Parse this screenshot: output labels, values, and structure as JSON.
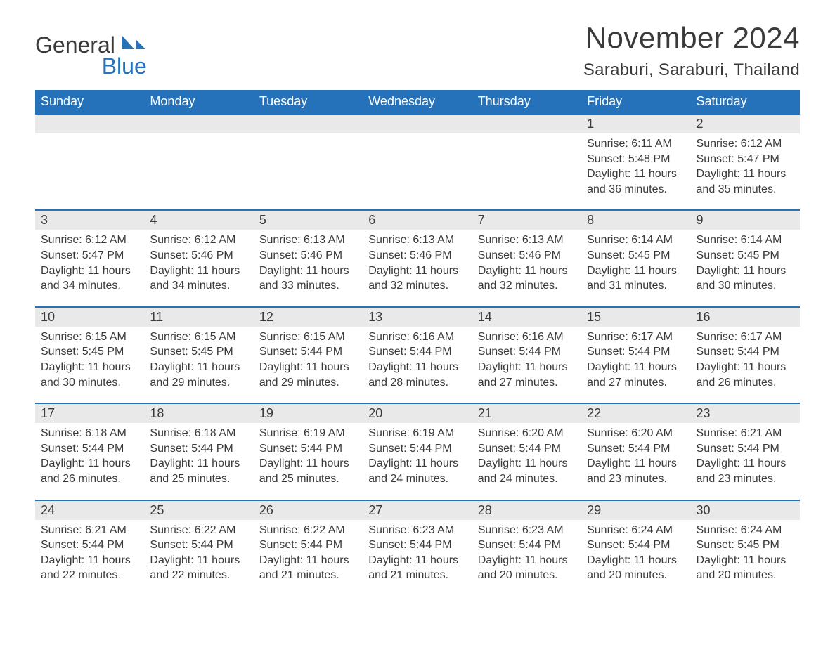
{
  "brand": {
    "word1": "General",
    "word2": "Blue",
    "logo_color": "#2572bb",
    "text_color": "#3a3a3a"
  },
  "title": {
    "month_year": "November 2024",
    "location": "Saraburi, Saraburi, Thailand"
  },
  "style": {
    "header_bg": "#2572bb",
    "header_text": "#ffffff",
    "daynum_bg": "#e9e9e9",
    "border_color": "#2572bb",
    "body_text": "#3a3a3a",
    "page_bg": "#ffffff",
    "dayheader_fontsize": 18,
    "title_fontsize": 42,
    "location_fontsize": 24,
    "cell_fontsize": 16
  },
  "day_headers": [
    "Sunday",
    "Monday",
    "Tuesday",
    "Wednesday",
    "Thursday",
    "Friday",
    "Saturday"
  ],
  "weeks": [
    [
      {
        "empty": true
      },
      {
        "empty": true
      },
      {
        "empty": true
      },
      {
        "empty": true
      },
      {
        "empty": true
      },
      {
        "day": "1",
        "sunrise": "Sunrise: 6:11 AM",
        "sunset": "Sunset: 5:48 PM",
        "daylight1": "Daylight: 11 hours",
        "daylight2": "and 36 minutes."
      },
      {
        "day": "2",
        "sunrise": "Sunrise: 6:12 AM",
        "sunset": "Sunset: 5:47 PM",
        "daylight1": "Daylight: 11 hours",
        "daylight2": "and 35 minutes."
      }
    ],
    [
      {
        "day": "3",
        "sunrise": "Sunrise: 6:12 AM",
        "sunset": "Sunset: 5:47 PM",
        "daylight1": "Daylight: 11 hours",
        "daylight2": "and 34 minutes."
      },
      {
        "day": "4",
        "sunrise": "Sunrise: 6:12 AM",
        "sunset": "Sunset: 5:46 PM",
        "daylight1": "Daylight: 11 hours",
        "daylight2": "and 34 minutes."
      },
      {
        "day": "5",
        "sunrise": "Sunrise: 6:13 AM",
        "sunset": "Sunset: 5:46 PM",
        "daylight1": "Daylight: 11 hours",
        "daylight2": "and 33 minutes."
      },
      {
        "day": "6",
        "sunrise": "Sunrise: 6:13 AM",
        "sunset": "Sunset: 5:46 PM",
        "daylight1": "Daylight: 11 hours",
        "daylight2": "and 32 minutes."
      },
      {
        "day": "7",
        "sunrise": "Sunrise: 6:13 AM",
        "sunset": "Sunset: 5:46 PM",
        "daylight1": "Daylight: 11 hours",
        "daylight2": "and 32 minutes."
      },
      {
        "day": "8",
        "sunrise": "Sunrise: 6:14 AM",
        "sunset": "Sunset: 5:45 PM",
        "daylight1": "Daylight: 11 hours",
        "daylight2": "and 31 minutes."
      },
      {
        "day": "9",
        "sunrise": "Sunrise: 6:14 AM",
        "sunset": "Sunset: 5:45 PM",
        "daylight1": "Daylight: 11 hours",
        "daylight2": "and 30 minutes."
      }
    ],
    [
      {
        "day": "10",
        "sunrise": "Sunrise: 6:15 AM",
        "sunset": "Sunset: 5:45 PM",
        "daylight1": "Daylight: 11 hours",
        "daylight2": "and 30 minutes."
      },
      {
        "day": "11",
        "sunrise": "Sunrise: 6:15 AM",
        "sunset": "Sunset: 5:45 PM",
        "daylight1": "Daylight: 11 hours",
        "daylight2": "and 29 minutes."
      },
      {
        "day": "12",
        "sunrise": "Sunrise: 6:15 AM",
        "sunset": "Sunset: 5:44 PM",
        "daylight1": "Daylight: 11 hours",
        "daylight2": "and 29 minutes."
      },
      {
        "day": "13",
        "sunrise": "Sunrise: 6:16 AM",
        "sunset": "Sunset: 5:44 PM",
        "daylight1": "Daylight: 11 hours",
        "daylight2": "and 28 minutes."
      },
      {
        "day": "14",
        "sunrise": "Sunrise: 6:16 AM",
        "sunset": "Sunset: 5:44 PM",
        "daylight1": "Daylight: 11 hours",
        "daylight2": "and 27 minutes."
      },
      {
        "day": "15",
        "sunrise": "Sunrise: 6:17 AM",
        "sunset": "Sunset: 5:44 PM",
        "daylight1": "Daylight: 11 hours",
        "daylight2": "and 27 minutes."
      },
      {
        "day": "16",
        "sunrise": "Sunrise: 6:17 AM",
        "sunset": "Sunset: 5:44 PM",
        "daylight1": "Daylight: 11 hours",
        "daylight2": "and 26 minutes."
      }
    ],
    [
      {
        "day": "17",
        "sunrise": "Sunrise: 6:18 AM",
        "sunset": "Sunset: 5:44 PM",
        "daylight1": "Daylight: 11 hours",
        "daylight2": "and 26 minutes."
      },
      {
        "day": "18",
        "sunrise": "Sunrise: 6:18 AM",
        "sunset": "Sunset: 5:44 PM",
        "daylight1": "Daylight: 11 hours",
        "daylight2": "and 25 minutes."
      },
      {
        "day": "19",
        "sunrise": "Sunrise: 6:19 AM",
        "sunset": "Sunset: 5:44 PM",
        "daylight1": "Daylight: 11 hours",
        "daylight2": "and 25 minutes."
      },
      {
        "day": "20",
        "sunrise": "Sunrise: 6:19 AM",
        "sunset": "Sunset: 5:44 PM",
        "daylight1": "Daylight: 11 hours",
        "daylight2": "and 24 minutes."
      },
      {
        "day": "21",
        "sunrise": "Sunrise: 6:20 AM",
        "sunset": "Sunset: 5:44 PM",
        "daylight1": "Daylight: 11 hours",
        "daylight2": "and 24 minutes."
      },
      {
        "day": "22",
        "sunrise": "Sunrise: 6:20 AM",
        "sunset": "Sunset: 5:44 PM",
        "daylight1": "Daylight: 11 hours",
        "daylight2": "and 23 minutes."
      },
      {
        "day": "23",
        "sunrise": "Sunrise: 6:21 AM",
        "sunset": "Sunset: 5:44 PM",
        "daylight1": "Daylight: 11 hours",
        "daylight2": "and 23 minutes."
      }
    ],
    [
      {
        "day": "24",
        "sunrise": "Sunrise: 6:21 AM",
        "sunset": "Sunset: 5:44 PM",
        "daylight1": "Daylight: 11 hours",
        "daylight2": "and 22 minutes."
      },
      {
        "day": "25",
        "sunrise": "Sunrise: 6:22 AM",
        "sunset": "Sunset: 5:44 PM",
        "daylight1": "Daylight: 11 hours",
        "daylight2": "and 22 minutes."
      },
      {
        "day": "26",
        "sunrise": "Sunrise: 6:22 AM",
        "sunset": "Sunset: 5:44 PM",
        "daylight1": "Daylight: 11 hours",
        "daylight2": "and 21 minutes."
      },
      {
        "day": "27",
        "sunrise": "Sunrise: 6:23 AM",
        "sunset": "Sunset: 5:44 PM",
        "daylight1": "Daylight: 11 hours",
        "daylight2": "and 21 minutes."
      },
      {
        "day": "28",
        "sunrise": "Sunrise: 6:23 AM",
        "sunset": "Sunset: 5:44 PM",
        "daylight1": "Daylight: 11 hours",
        "daylight2": "and 20 minutes."
      },
      {
        "day": "29",
        "sunrise": "Sunrise: 6:24 AM",
        "sunset": "Sunset: 5:44 PM",
        "daylight1": "Daylight: 11 hours",
        "daylight2": "and 20 minutes."
      },
      {
        "day": "30",
        "sunrise": "Sunrise: 6:24 AM",
        "sunset": "Sunset: 5:45 PM",
        "daylight1": "Daylight: 11 hours",
        "daylight2": "and 20 minutes."
      }
    ]
  ]
}
